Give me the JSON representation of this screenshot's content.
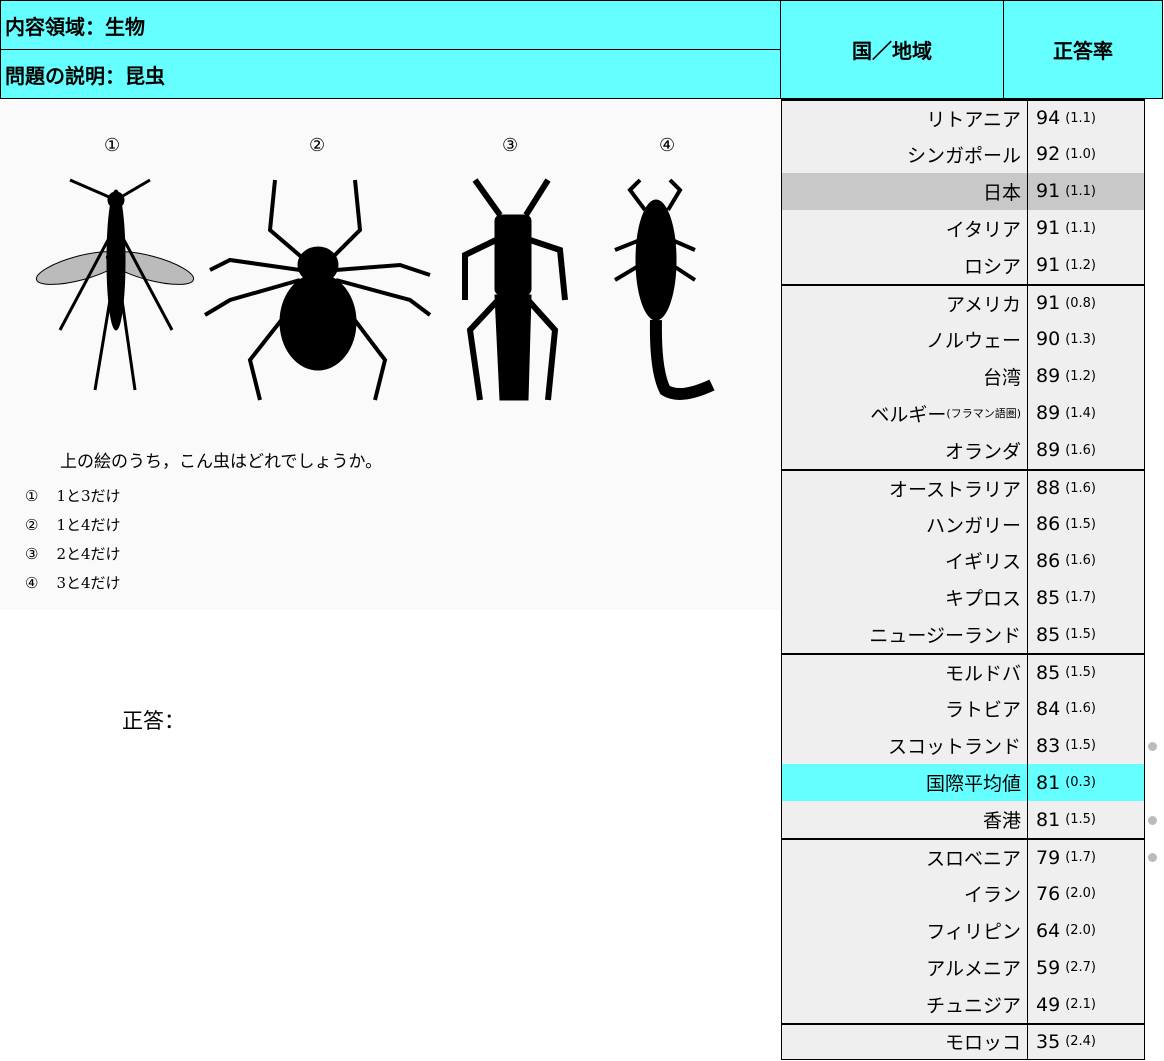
{
  "header": {
    "content_area": "内容領域：生物",
    "description": "問題の説明：昆虫",
    "country_col": "国／地域",
    "score_col": "正答率"
  },
  "figure": {
    "labels": [
      "①",
      "②",
      "③",
      "④"
    ],
    "question": "上の絵のうち，こん虫はどれでしょうか。",
    "options": [
      {
        "number": "①",
        "text": "1と3だけ"
      },
      {
        "number": "②",
        "text": "1と4だけ"
      },
      {
        "number": "③",
        "text": "2と4だけ"
      },
      {
        "number": "④",
        "text": "3と4だけ"
      }
    ]
  },
  "answer_label": "正答：",
  "table": {
    "groups": [
      [
        {
          "country": "リトアニア",
          "score": 94,
          "se": "(1.1)"
        },
        {
          "country": "シンガポール",
          "score": 92,
          "se": "(1.0)"
        },
        {
          "country": "日本",
          "score": 91,
          "se": "(1.1)",
          "background": "#c8c8c8"
        },
        {
          "country": "イタリア",
          "score": 91,
          "se": "(1.1)"
        },
        {
          "country": "ロシア",
          "score": 91,
          "se": "(1.2)"
        }
      ],
      [
        {
          "country": "アメリカ",
          "score": 91,
          "se": "(0.8)"
        },
        {
          "country": "ノルウェー",
          "score": 90,
          "se": "(1.3)"
        },
        {
          "country": "台湾",
          "score": 89,
          "se": "(1.2)"
        },
        {
          "country": "ベルギー",
          "note": "(フラマン語圏)",
          "score": 89,
          "se": "(1.4)"
        },
        {
          "country": "オランダ",
          "score": 89,
          "se": "(1.6)"
        }
      ],
      [
        {
          "country": "オーストラリア",
          "score": 88,
          "se": "(1.6)"
        },
        {
          "country": "ハンガリー",
          "score": 86,
          "se": "(1.5)"
        },
        {
          "country": "イギリス",
          "score": 86,
          "se": "(1.6)"
        },
        {
          "country": "キプロス",
          "score": 85,
          "se": "(1.7)"
        },
        {
          "country": "ニュージーランド",
          "score": 85,
          "se": "(1.5)"
        }
      ],
      [
        {
          "country": "モルドバ",
          "score": 85,
          "se": "(1.5)"
        },
        {
          "country": "ラトビア",
          "score": 84,
          "se": "(1.6)"
        },
        {
          "country": "スコットランド",
          "score": 83,
          "se": "(1.5)",
          "flag": true
        },
        {
          "country": "国際平均値",
          "score": 81,
          "se": "(0.3)",
          "background": "#66ffff"
        },
        {
          "country": "香港",
          "score": 81,
          "se": "(1.5)",
          "flag": true
        }
      ],
      [
        {
          "country": "スロベニア",
          "score": 79,
          "se": "(1.7)",
          "flag": true
        },
        {
          "country": "イラン",
          "score": 76,
          "se": "(2.0)"
        },
        {
          "country": "フィリピン",
          "score": 64,
          "se": "(2.0)"
        },
        {
          "country": "アルメニア",
          "score": 59,
          "se": "(2.7)"
        },
        {
          "country": "チュニジア",
          "score": 49,
          "se": "(2.1)"
        }
      ],
      [
        {
          "country": "モロッコ",
          "score": 35,
          "se": "(2.4)"
        }
      ]
    ]
  }
}
